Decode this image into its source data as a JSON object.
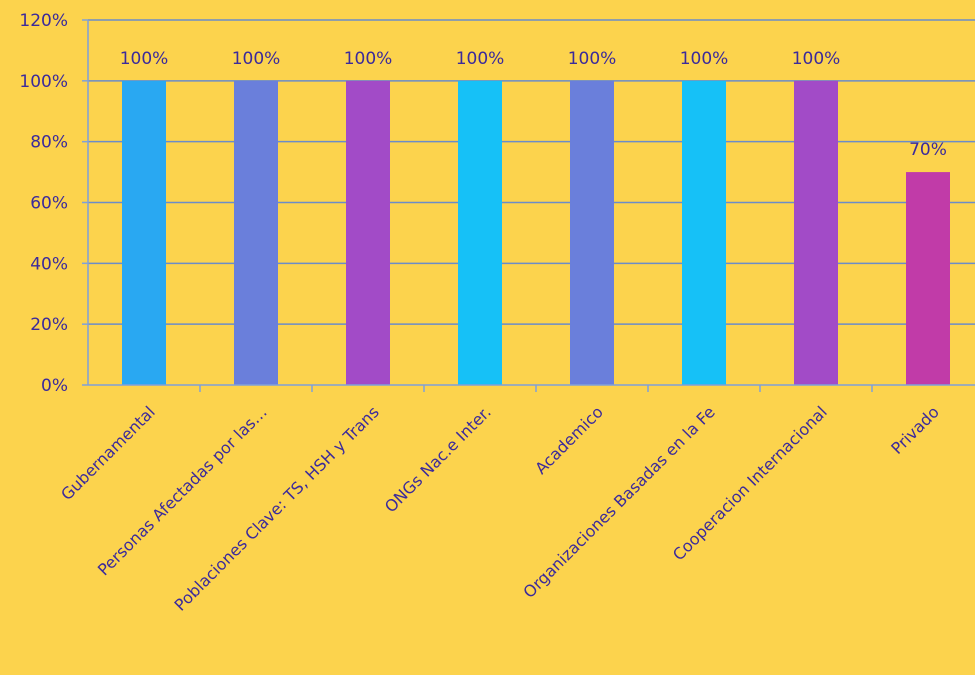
{
  "chart_data": {
    "type": "bar",
    "categories": [
      "Gubernamental",
      "Personas Afectadas por las…",
      "Poblaciones Clave: TS, HSH y Trans",
      "ONGs Nac.e Inter.",
      "Academico",
      "Organizaciones Basadas en la Fe",
      "Cooperacion Internacional",
      "Privado"
    ],
    "values": [
      100,
      100,
      100,
      100,
      100,
      100,
      100,
      70
    ],
    "data_labels": [
      "100%",
      "100%",
      "100%",
      "100%",
      "100%",
      "100%",
      "100%",
      "70%"
    ],
    "bar_colors": [
      "#29A8F2",
      "#6A7FDB",
      "#A24BC7",
      "#16C1F7",
      "#6A7FDB",
      "#16C1F7",
      "#A24BC7",
      "#C13BA8"
    ],
    "y_ticks": [
      "0%",
      "20%",
      "40%",
      "60%",
      "80%",
      "100%",
      "120%"
    ],
    "ylim": [
      0,
      120
    ],
    "grid": true,
    "colors": {
      "background": "#FCD34D",
      "gridline": "#6B8CC9",
      "axis": "#7FA0D9",
      "text": "#3B2A9B"
    }
  }
}
